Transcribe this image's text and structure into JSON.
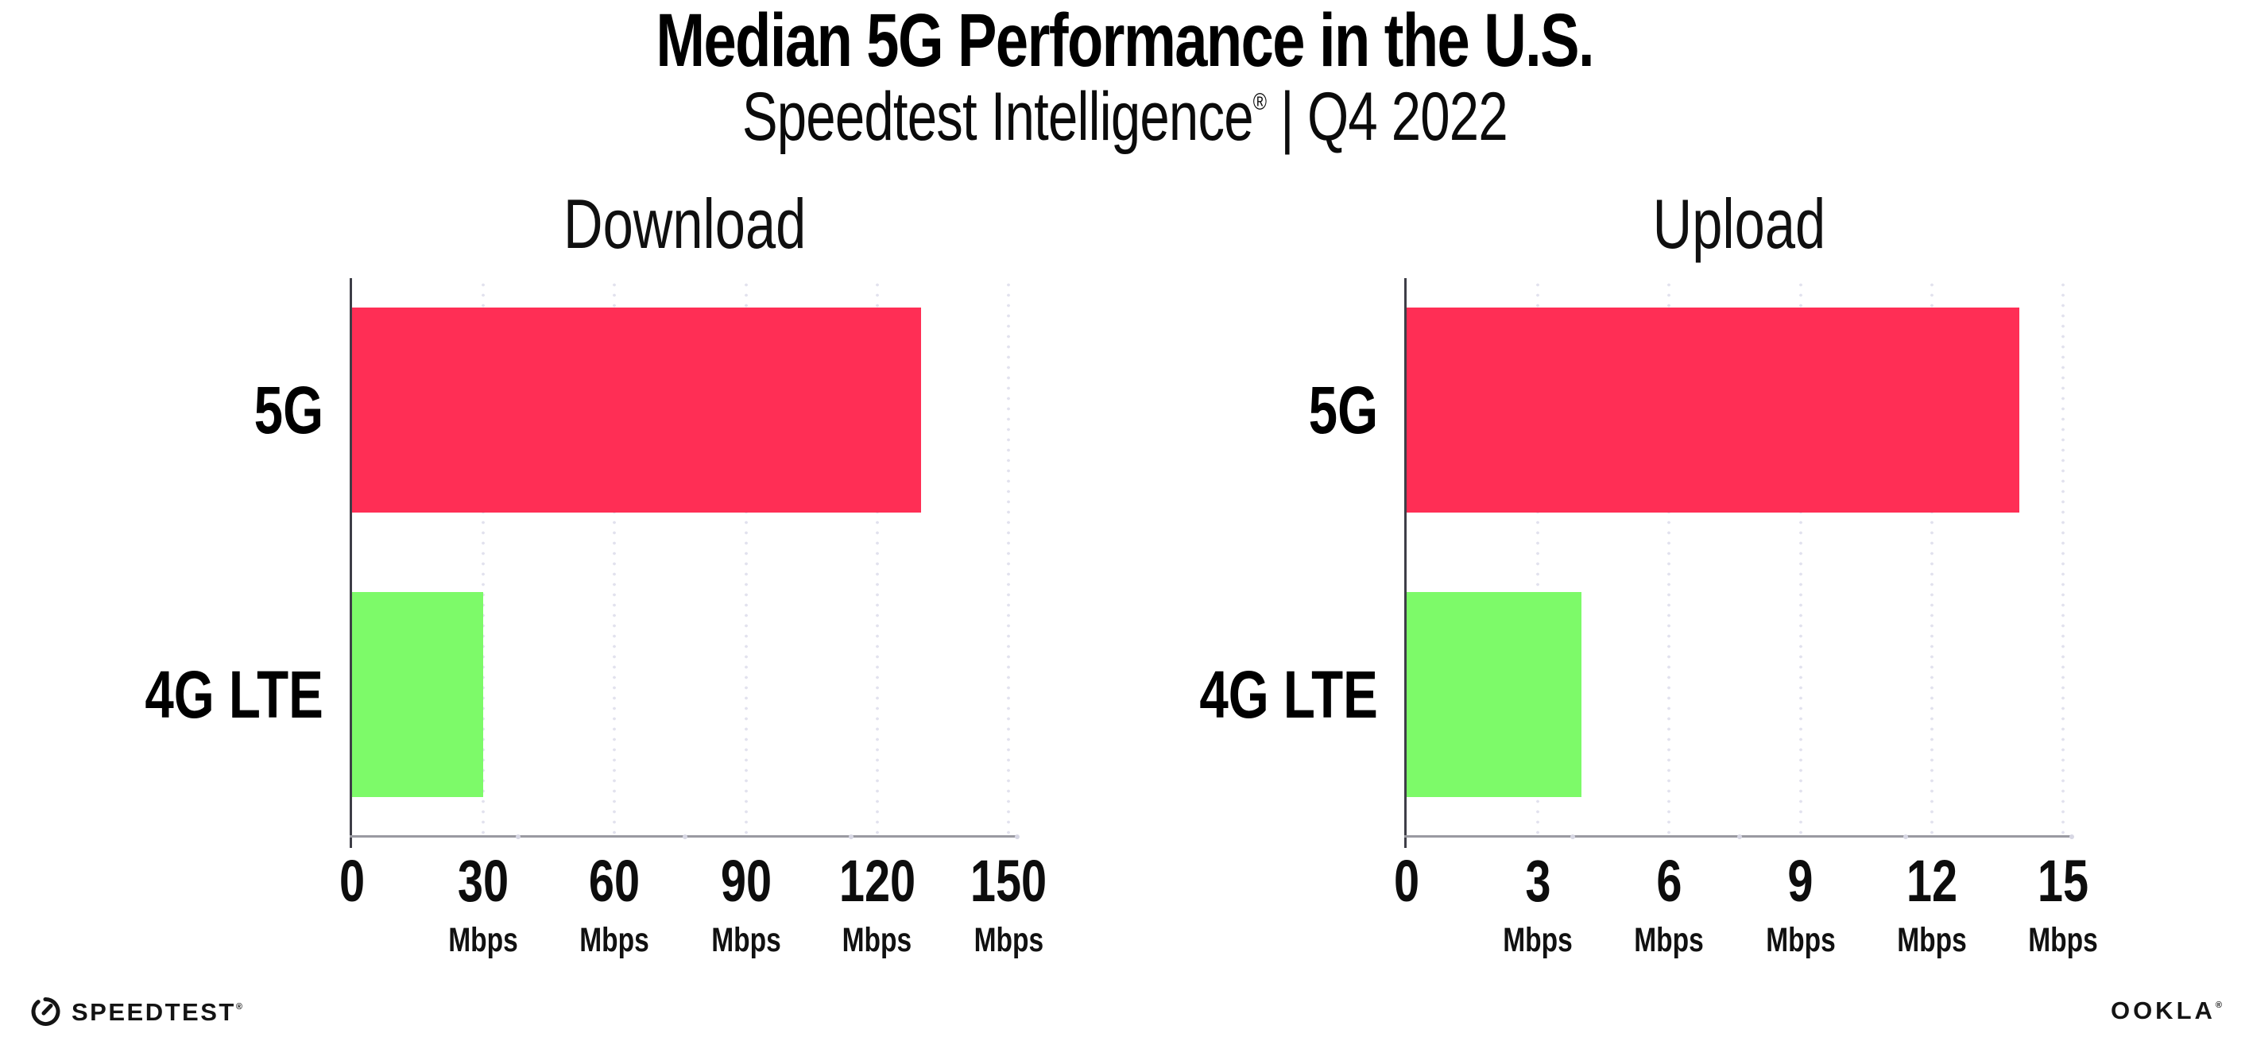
{
  "header": {
    "title": "Median 5G Performance in the U.S.",
    "subtitle_brand": "Speedtest Intelligence",
    "subtitle_reg": "®",
    "subtitle_sep": "|",
    "subtitle_period": "Q4 2022"
  },
  "footer": {
    "speedtest_label": "SPEEDTEST",
    "speedtest_mark": "®",
    "ookla_label": "OOKLA",
    "ookla_mark": "®"
  },
  "colors": {
    "bar_5g": "#ff2e55",
    "bar_4g_lte": "#7dfa69",
    "gridline": "#e2e2ee",
    "x_axis": "#9a9aa1",
    "y_axis": "#3e3e47"
  },
  "chart_data": [
    {
      "type": "bar",
      "orientation": "horizontal",
      "title": "Download",
      "categories": [
        "5G",
        "4G LTE"
      ],
      "values": [
        130,
        30
      ],
      "unit": "Mbps",
      "xticks": [
        0,
        30,
        60,
        90,
        120,
        150
      ],
      "xlim": [
        0,
        152
      ],
      "bar_colors": [
        "#ff2e55",
        "#7dfa69"
      ],
      "grid": "dotted-vertical",
      "legend": "none"
    },
    {
      "type": "bar",
      "orientation": "horizontal",
      "title": "Upload",
      "categories": [
        "5G",
        "4G LTE"
      ],
      "values": [
        14,
        4
      ],
      "unit": "Mbps",
      "xticks": [
        0,
        3,
        6,
        9,
        12,
        15
      ],
      "xlim": [
        0,
        15.2
      ],
      "bar_colors": [
        "#ff2e55",
        "#7dfa69"
      ],
      "grid": "dotted-vertical",
      "legend": "none"
    }
  ]
}
